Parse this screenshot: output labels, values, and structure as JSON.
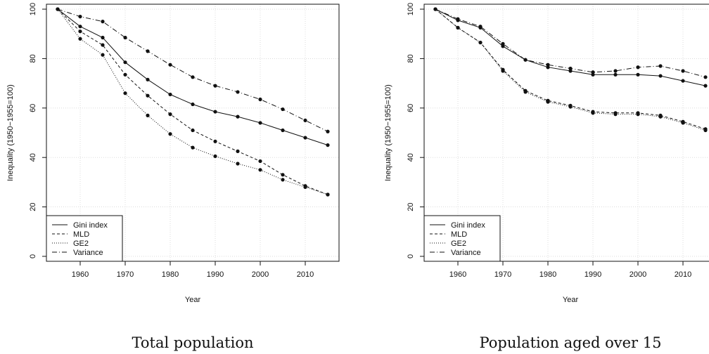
{
  "chart_data": [
    {
      "type": "line",
      "caption": "Total population",
      "xlabel": "Year",
      "ylabel": "Inequality (1950−1955=100)",
      "xlim": [
        1952.5,
        2017.5
      ],
      "ylim": [
        -2,
        102
      ],
      "xticks": [
        1960,
        1970,
        1980,
        1990,
        2000,
        2010
      ],
      "yticks": [
        0,
        20,
        40,
        60,
        80,
        100
      ],
      "grid": true,
      "legend_position": "bottom-left",
      "x": [
        1955,
        1960,
        1965,
        1970,
        1975,
        1980,
        1985,
        1990,
        1995,
        2000,
        2005,
        2010,
        2015
      ],
      "series": [
        {
          "name": "Gini index",
          "style": "solid",
          "values": [
            100,
            93,
            88.5,
            78.5,
            71.5,
            65.5,
            61.5,
            58.5,
            56.5,
            54,
            51,
            48,
            45
          ]
        },
        {
          "name": "MLD",
          "style": "dashed",
          "values": [
            100,
            91,
            85.5,
            73.5,
            65,
            57.5,
            51,
            46.5,
            42.5,
            38.5,
            33,
            28.5,
            25
          ]
        },
        {
          "name": "GE2",
          "style": "dotted",
          "values": [
            100,
            88,
            81.5,
            66,
            57,
            49.5,
            44,
            40.5,
            37.5,
            35,
            31,
            28,
            25
          ]
        },
        {
          "name": "Variance",
          "style": "dashdot",
          "values": [
            100,
            97,
            95,
            88.5,
            83,
            77.5,
            72.5,
            69,
            66.5,
            63.5,
            59.5,
            55,
            50.5
          ]
        }
      ]
    },
    {
      "type": "line",
      "caption": "Population aged over 15",
      "xlabel": "Year",
      "ylabel": "Inequality (1950−1955=100)",
      "xlim": [
        1952.5,
        2017.5
      ],
      "ylim": [
        -2,
        102
      ],
      "xticks": [
        1960,
        1970,
        1980,
        1990,
        2000,
        2010
      ],
      "yticks": [
        0,
        20,
        40,
        60,
        80,
        100
      ],
      "grid": true,
      "legend_position": "bottom-left",
      "x": [
        1955,
        1960,
        1965,
        1970,
        1975,
        1980,
        1985,
        1990,
        1995,
        2000,
        2005,
        2010,
        2015
      ],
      "series": [
        {
          "name": "Gini index",
          "style": "solid",
          "values": [
            100,
            95.5,
            92.5,
            85,
            79.5,
            76.5,
            75,
            73.5,
            73.5,
            73.5,
            73,
            71,
            69
          ]
        },
        {
          "name": "MLD",
          "style": "dashed",
          "values": [
            100,
            92.5,
            86.5,
            75.5,
            67,
            63,
            61,
            58.5,
            58,
            58,
            57,
            54.5,
            51.5
          ]
        },
        {
          "name": "GE2",
          "style": "dotted",
          "values": [
            100,
            92.5,
            86.5,
            75,
            66.5,
            62.5,
            60.5,
            58,
            57.5,
            57.5,
            56.5,
            54,
            51
          ]
        },
        {
          "name": "Variance",
          "style": "dashdot",
          "values": [
            100,
            96,
            93,
            86,
            79.5,
            77.5,
            76,
            74.5,
            75,
            76.5,
            77,
            75,
            72.5
          ]
        }
      ]
    }
  ]
}
